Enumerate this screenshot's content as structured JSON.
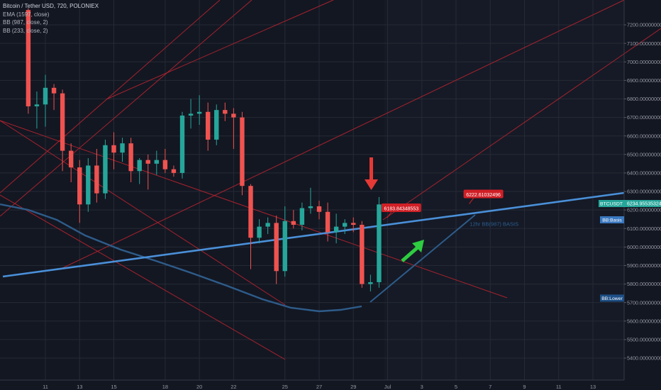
{
  "header": {
    "symbol_title": "Bitcoin / Tether USD, 720, POLONIEX",
    "indicators": [
      "EMA (1597, close)",
      "BB (987, close, 2)",
      "BB (233, close, 2)"
    ]
  },
  "colors": {
    "background": "#131722",
    "grid": "#262a35",
    "up": "#26a69a",
    "down": "#ef5350",
    "channel": "#c0242f",
    "bb_basis": "#4a90d9",
    "bb_lower": "#2e5c8a",
    "text": "#9598a1",
    "label_red": "#d01f26",
    "arrow_green": "#2ecc40",
    "arrow_red": "#e53935"
  },
  "chart_data": {
    "type": "candlestick",
    "title": "Bitcoin / Tether USD, 720, POLONIEX",
    "ylim": [
      5380,
      7300
    ],
    "y_ticks": [
      "7200.00000000",
      "7100.00000000",
      "7000.00000000",
      "6900.00000000",
      "6800.00000000",
      "6700.00000000",
      "6600.00000000",
      "6500.00000000",
      "6400.00000000",
      "6300.00000000",
      "6200.00000000",
      "6100.00000000",
      "6000.00000000",
      "5900.00000000",
      "5800.00000000",
      "5700.00000000",
      "5600.00000000",
      "5500.00000000",
      "5400.00000000"
    ],
    "y_tick_values": [
      7200,
      7100,
      7000,
      6900,
      6800,
      6700,
      6600,
      6500,
      6400,
      6300,
      6200,
      6100,
      6000,
      5900,
      5800,
      5700,
      5600,
      5500,
      5400
    ],
    "x_ticks": [
      "11",
      "13",
      "15",
      "18",
      "20",
      "22",
      "25",
      "27",
      "29",
      "Jul",
      "3",
      "5",
      "7",
      "9",
      "11",
      "13"
    ],
    "x_tick_days": [
      11,
      13,
      15,
      18,
      20,
      22,
      25,
      27,
      29,
      31,
      33,
      35,
      37,
      39,
      41,
      43
    ],
    "grid": true,
    "candles": [
      {
        "day": 10.0,
        "o": 7280,
        "h": 7290,
        "l": 6720,
        "c": 6760
      },
      {
        "day": 10.5,
        "o": 6760,
        "h": 6840,
        "l": 6640,
        "c": 6770
      },
      {
        "day": 11.0,
        "o": 6770,
        "h": 6930,
        "l": 6650,
        "c": 6860
      },
      {
        "day": 11.5,
        "o": 6860,
        "h": 6880,
        "l": 6740,
        "c": 6830
      },
      {
        "day": 12.0,
        "o": 6830,
        "h": 6850,
        "l": 6410,
        "c": 6520
      },
      {
        "day": 12.5,
        "o": 6520,
        "h": 6560,
        "l": 6350,
        "c": 6430
      },
      {
        "day": 13.0,
        "o": 6430,
        "h": 6470,
        "l": 6130,
        "c": 6230
      },
      {
        "day": 13.5,
        "o": 6230,
        "h": 6480,
        "l": 6190,
        "c": 6440
      },
      {
        "day": 14.0,
        "o": 6440,
        "h": 6530,
        "l": 6240,
        "c": 6290
      },
      {
        "day": 14.5,
        "o": 6290,
        "h": 6580,
        "l": 6260,
        "c": 6550
      },
      {
        "day": 15.0,
        "o": 6550,
        "h": 6620,
        "l": 6420,
        "c": 6510
      },
      {
        "day": 15.5,
        "o": 6510,
        "h": 6590,
        "l": 6460,
        "c": 6560
      },
      {
        "day": 16.0,
        "o": 6560,
        "h": 6590,
        "l": 6350,
        "c": 6410
      },
      {
        "day": 16.5,
        "o": 6410,
        "h": 6480,
        "l": 6340,
        "c": 6470
      },
      {
        "day": 17.0,
        "o": 6470,
        "h": 6500,
        "l": 6310,
        "c": 6450
      },
      {
        "day": 17.5,
        "o": 6450,
        "h": 6520,
        "l": 6390,
        "c": 6470
      },
      {
        "day": 18.0,
        "o": 6470,
        "h": 6530,
        "l": 6400,
        "c": 6420
      },
      {
        "day": 18.5,
        "o": 6420,
        "h": 6440,
        "l": 6380,
        "c": 6400
      },
      {
        "day": 19.0,
        "o": 6400,
        "h": 6730,
        "l": 6370,
        "c": 6710
      },
      {
        "day": 19.5,
        "o": 6710,
        "h": 6800,
        "l": 6640,
        "c": 6720
      },
      {
        "day": 20.0,
        "o": 6720,
        "h": 6820,
        "l": 6660,
        "c": 6730
      },
      {
        "day": 20.5,
        "o": 6730,
        "h": 6780,
        "l": 6520,
        "c": 6580
      },
      {
        "day": 21.0,
        "o": 6580,
        "h": 6770,
        "l": 6550,
        "c": 6740
      },
      {
        "day": 21.5,
        "o": 6740,
        "h": 6780,
        "l": 6680,
        "c": 6720
      },
      {
        "day": 22.0,
        "o": 6720,
        "h": 6750,
        "l": 6530,
        "c": 6700
      },
      {
        "day": 22.5,
        "o": 6700,
        "h": 6730,
        "l": 6280,
        "c": 6330
      },
      {
        "day": 23.0,
        "o": 6330,
        "h": 6340,
        "l": 5880,
        "c": 6050
      },
      {
        "day": 23.5,
        "o": 6050,
        "h": 6150,
        "l": 6020,
        "c": 6110
      },
      {
        "day": 24.0,
        "o": 6110,
        "h": 6160,
        "l": 6070,
        "c": 6130
      },
      {
        "day": 24.5,
        "o": 6130,
        "h": 6170,
        "l": 5800,
        "c": 5870
      },
      {
        "day": 25.0,
        "o": 5870,
        "h": 6220,
        "l": 5840,
        "c": 6140
      },
      {
        "day": 25.5,
        "o": 6140,
        "h": 6200,
        "l": 6100,
        "c": 6120
      },
      {
        "day": 26.0,
        "o": 6120,
        "h": 6240,
        "l": 6090,
        "c": 6210
      },
      {
        "day": 26.5,
        "o": 6210,
        "h": 6320,
        "l": 6180,
        "c": 6220
      },
      {
        "day": 27.0,
        "o": 6220,
        "h": 6250,
        "l": 6150,
        "c": 6190
      },
      {
        "day": 27.5,
        "o": 6190,
        "h": 6240,
        "l": 6030,
        "c": 6080
      },
      {
        "day": 28.0,
        "o": 6080,
        "h": 6180,
        "l": 6020,
        "c": 6110
      },
      {
        "day": 28.5,
        "o": 6110,
        "h": 6150,
        "l": 6070,
        "c": 6130
      },
      {
        "day": 29.0,
        "o": 6130,
        "h": 6160,
        "l": 6080,
        "c": 6120
      },
      {
        "day": 29.5,
        "o": 6120,
        "h": 6140,
        "l": 5780,
        "c": 5800
      },
      {
        "day": 30.0,
        "o": 5800,
        "h": 5850,
        "l": 5760,
        "c": 5810
      },
      {
        "day": 30.5,
        "o": 5810,
        "h": 6270,
        "l": 5780,
        "c": 6230
      }
    ],
    "annotations": {
      "labels": [
        {
          "text": "6183.84348553",
          "day": 31.8,
          "price": 6208
        },
        {
          "text": "6222.61032496",
          "day": 36.6,
          "price": 6283
        }
      ],
      "basis_text": "12hr BB(987) BASIS",
      "basis_text_pos": {
        "day": 35.8,
        "price": 6115
      },
      "price_tags": [
        {
          "text": "BTCUSDT",
          "value": "6234.95535324",
          "price": 6235
        },
        {
          "text": "BB:Basis",
          "price": 6147
        },
        {
          "text": "BB:Lower",
          "price": 5724
        }
      ]
    }
  }
}
